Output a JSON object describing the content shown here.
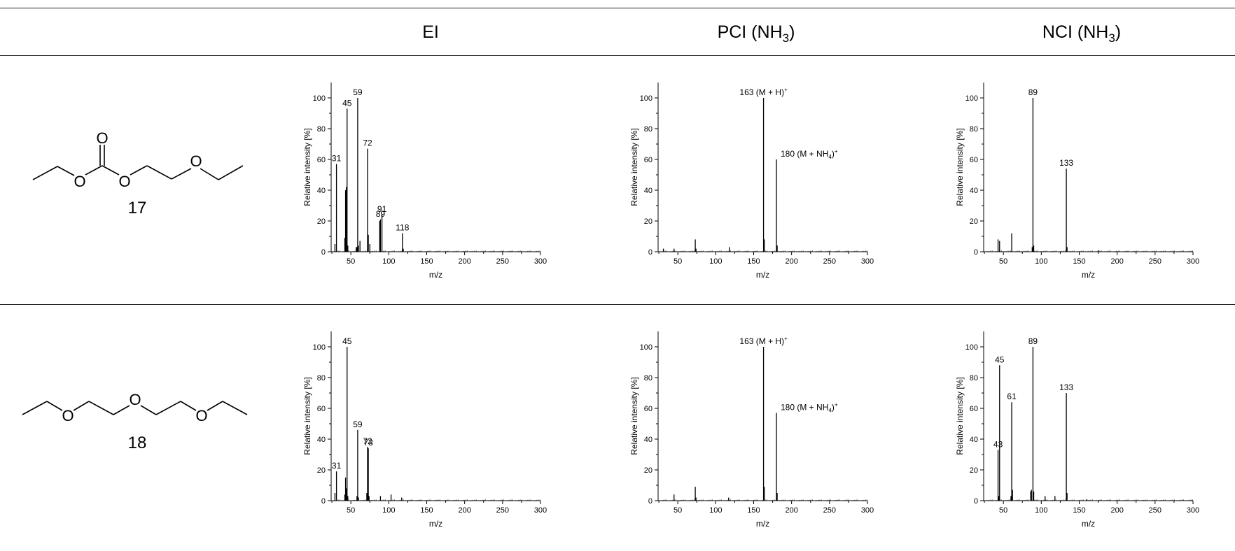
{
  "columns": {
    "ei": "EI",
    "pci_prefix": "PCI (NH",
    "pci_sub": "3",
    "pci_suffix": ")",
    "nci_prefix": "NCI (NH",
    "nci_sub": "3",
    "nci_suffix": ")"
  },
  "compounds": [
    "17",
    "18"
  ],
  "structure_atoms": {
    "c17_carbonyl_o": "O",
    "c17_o1": "O",
    "c17_o2": "O",
    "c17_o3": "O",
    "c18_o1": "O",
    "c18_o2": "O",
    "c18_o3": "O"
  },
  "chart_data": [
    {
      "id": "c17_ei",
      "type": "bar",
      "compound": "17",
      "ionization": "EI",
      "xlabel": "m/z",
      "ylabel": "Relative intensity [%]",
      "xlim": [
        24,
        300
      ],
      "ylim": [
        0,
        110
      ],
      "xticks": [
        50,
        100,
        150,
        200,
        250,
        300
      ],
      "yticks": [
        0,
        20,
        40,
        60,
        80,
        100
      ],
      "peaks": [
        {
          "mz": 29,
          "intensity": 5
        },
        {
          "mz": 31,
          "intensity": 57
        },
        {
          "mz": 42,
          "intensity": 9
        },
        {
          "mz": 43,
          "intensity": 40
        },
        {
          "mz": 44,
          "intensity": 42
        },
        {
          "mz": 45,
          "intensity": 93
        },
        {
          "mz": 46,
          "intensity": 4
        },
        {
          "mz": 57,
          "intensity": 3
        },
        {
          "mz": 58,
          "intensity": 3
        },
        {
          "mz": 59,
          "intensity": 100
        },
        {
          "mz": 60,
          "intensity": 4
        },
        {
          "mz": 62,
          "intensity": 7
        },
        {
          "mz": 72,
          "intensity": 67
        },
        {
          "mz": 73,
          "intensity": 11
        },
        {
          "mz": 75,
          "intensity": 5
        },
        {
          "mz": 88,
          "intensity": 20
        },
        {
          "mz": 89,
          "intensity": 21
        },
        {
          "mz": 91,
          "intensity": 24
        },
        {
          "mz": 118,
          "intensity": 12
        },
        {
          "mz": 119,
          "intensity": 2
        }
      ],
      "annotations": [
        {
          "text": "31",
          "mz": 31,
          "intensity": 57
        },
        {
          "text": "45",
          "mz": 45,
          "intensity": 93
        },
        {
          "text": "59",
          "mz": 59,
          "intensity": 100
        },
        {
          "text": "72",
          "mz": 72,
          "intensity": 67
        },
        {
          "text": "89",
          "mz": 89,
          "intensity": 21
        },
        {
          "text": "91",
          "mz": 91,
          "intensity": 24
        },
        {
          "text": "118",
          "mz": 118,
          "intensity": 12
        }
      ]
    },
    {
      "id": "c17_pci",
      "type": "bar",
      "compound": "17",
      "ionization": "PCI (NH3)",
      "xlabel": "m/z",
      "ylabel": "Relative intensity [%]",
      "xlim": [
        24,
        300
      ],
      "ylim": [
        0,
        110
      ],
      "xticks": [
        50,
        100,
        150,
        200,
        250,
        300
      ],
      "yticks": [
        0,
        20,
        40,
        60,
        80,
        100
      ],
      "peaks": [
        {
          "mz": 31,
          "intensity": 2
        },
        {
          "mz": 45,
          "intensity": 2
        },
        {
          "mz": 73,
          "intensity": 8
        },
        {
          "mz": 74,
          "intensity": 2
        },
        {
          "mz": 118,
          "intensity": 3
        },
        {
          "mz": 163,
          "intensity": 100
        },
        {
          "mz": 164,
          "intensity": 8
        },
        {
          "mz": 180,
          "intensity": 60
        },
        {
          "mz": 181,
          "intensity": 4
        }
      ],
      "annotations": [
        {
          "text": "163 (M + H)",
          "sup": "+",
          "mz": 163,
          "intensity": 100
        },
        {
          "text": "180 (M + NH",
          "sub": "4",
          "tail": ")",
          "sup": "+",
          "mz": 180,
          "intensity": 60
        }
      ]
    },
    {
      "id": "c17_nci",
      "type": "bar",
      "compound": "17",
      "ionization": "NCI (NH3)",
      "xlabel": "m/z",
      "ylabel": "Relative intensity [%]",
      "xlim": [
        24,
        300
      ],
      "ylim": [
        0,
        110
      ],
      "xticks": [
        50,
        100,
        150,
        200,
        250,
        300
      ],
      "yticks": [
        0,
        20,
        40,
        60,
        80,
        100
      ],
      "peaks": [
        {
          "mz": 43,
          "intensity": 8
        },
        {
          "mz": 45,
          "intensity": 7
        },
        {
          "mz": 61,
          "intensity": 12
        },
        {
          "mz": 88,
          "intensity": 3
        },
        {
          "mz": 89,
          "intensity": 100
        },
        {
          "mz": 90,
          "intensity": 4
        },
        {
          "mz": 133,
          "intensity": 54
        },
        {
          "mz": 134,
          "intensity": 3
        },
        {
          "mz": 175,
          "intensity": 1
        }
      ],
      "annotations": [
        {
          "text": "89",
          "mz": 89,
          "intensity": 100
        },
        {
          "text": "133",
          "mz": 133,
          "intensity": 54
        }
      ]
    },
    {
      "id": "c18_ei",
      "type": "bar",
      "compound": "18",
      "ionization": "EI",
      "xlabel": "m/z",
      "ylabel": "Relative intensity [%]",
      "xlim": [
        24,
        300
      ],
      "ylim": [
        0,
        110
      ],
      "xticks": [
        50,
        100,
        150,
        200,
        250,
        300
      ],
      "yticks": [
        0,
        20,
        40,
        60,
        80,
        100
      ],
      "peaks": [
        {
          "mz": 29,
          "intensity": 5
        },
        {
          "mz": 31,
          "intensity": 19
        },
        {
          "mz": 42,
          "intensity": 4
        },
        {
          "mz": 43,
          "intensity": 15
        },
        {
          "mz": 44,
          "intensity": 8
        },
        {
          "mz": 45,
          "intensity": 100
        },
        {
          "mz": 46,
          "intensity": 3
        },
        {
          "mz": 58,
          "intensity": 3
        },
        {
          "mz": 59,
          "intensity": 46
        },
        {
          "mz": 60,
          "intensity": 2
        },
        {
          "mz": 71,
          "intensity": 5
        },
        {
          "mz": 72,
          "intensity": 35
        },
        {
          "mz": 73,
          "intensity": 34
        },
        {
          "mz": 74,
          "intensity": 3
        },
        {
          "mz": 89,
          "intensity": 3
        },
        {
          "mz": 103,
          "intensity": 4
        },
        {
          "mz": 117,
          "intensity": 2
        }
      ],
      "annotations": [
        {
          "text": "31",
          "mz": 31,
          "intensity": 19
        },
        {
          "text": "45",
          "mz": 45,
          "intensity": 100
        },
        {
          "text": "59",
          "mz": 59,
          "intensity": 46
        },
        {
          "text": "72",
          "mz": 72,
          "intensity": 35
        },
        {
          "text": "73",
          "mz": 73,
          "intensity": 34
        }
      ]
    },
    {
      "id": "c18_pci",
      "type": "bar",
      "compound": "18",
      "ionization": "PCI (NH3)",
      "xlabel": "m/z",
      "ylabel": "Relative intensity [%]",
      "xlim": [
        24,
        300
      ],
      "ylim": [
        0,
        110
      ],
      "xticks": [
        50,
        100,
        150,
        200,
        250,
        300
      ],
      "yticks": [
        0,
        20,
        40,
        60,
        80,
        100
      ],
      "peaks": [
        {
          "mz": 45,
          "intensity": 4
        },
        {
          "mz": 73,
          "intensity": 9
        },
        {
          "mz": 74,
          "intensity": 2
        },
        {
          "mz": 117,
          "intensity": 2
        },
        {
          "mz": 163,
          "intensity": 100
        },
        {
          "mz": 164,
          "intensity": 9
        },
        {
          "mz": 180,
          "intensity": 57
        },
        {
          "mz": 181,
          "intensity": 5
        }
      ],
      "annotations": [
        {
          "text": "163 (M + H)",
          "sup": "+",
          "mz": 163,
          "intensity": 100
        },
        {
          "text": "180 (M + NH",
          "sub": "4",
          "tail": ")",
          "sup": "+",
          "mz": 180,
          "intensity": 57
        }
      ]
    },
    {
      "id": "c18_nci",
      "type": "bar",
      "compound": "18",
      "ionization": "NCI (NH3)",
      "xlabel": "m/z",
      "ylabel": "Relative intensity [%]",
      "xlim": [
        24,
        300
      ],
      "ylim": [
        0,
        110
      ],
      "xticks": [
        50,
        100,
        150,
        200,
        250,
        300
      ],
      "yticks": [
        0,
        20,
        40,
        60,
        80,
        100
      ],
      "peaks": [
        {
          "mz": 43,
          "intensity": 33
        },
        {
          "mz": 44,
          "intensity": 3
        },
        {
          "mz": 45,
          "intensity": 88
        },
        {
          "mz": 60,
          "intensity": 3
        },
        {
          "mz": 61,
          "intensity": 64
        },
        {
          "mz": 62,
          "intensity": 7
        },
        {
          "mz": 86,
          "intensity": 6
        },
        {
          "mz": 87,
          "intensity": 7
        },
        {
          "mz": 89,
          "intensity": 100
        },
        {
          "mz": 90,
          "intensity": 6
        },
        {
          "mz": 105,
          "intensity": 3
        },
        {
          "mz": 118,
          "intensity": 3
        },
        {
          "mz": 133,
          "intensity": 70
        },
        {
          "mz": 134,
          "intensity": 5
        },
        {
          "mz": 160,
          "intensity": 1
        }
      ],
      "annotations": [
        {
          "text": "43",
          "mz": 43,
          "intensity": 33
        },
        {
          "text": "45",
          "mz": 45,
          "intensity": 88
        },
        {
          "text": "61",
          "mz": 61,
          "intensity": 64
        },
        {
          "text": "89",
          "mz": 89,
          "intensity": 100
        },
        {
          "text": "133",
          "mz": 133,
          "intensity": 70
        }
      ]
    }
  ]
}
